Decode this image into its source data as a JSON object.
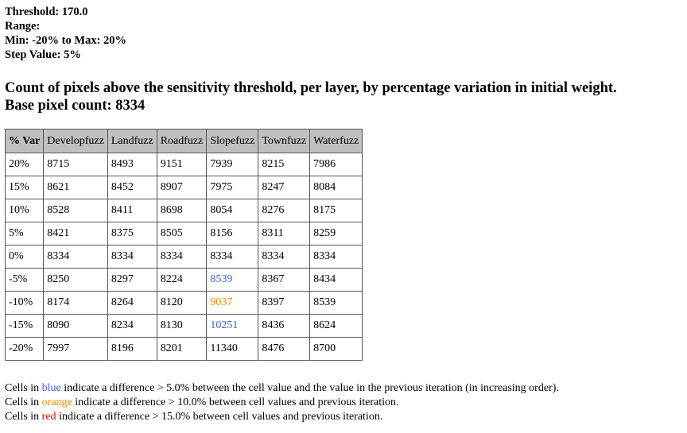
{
  "params": {
    "threshold": "Threshold: 170.0",
    "range": "Range:",
    "minmax": "Min: -20% to Max: 20%",
    "step": "Step Value: 5%"
  },
  "heading": {
    "line1": "Count of pixels above the sensitivity threshold, per layer, by percentage variation in initial weight.",
    "line2": "Base pixel count: 8334"
  },
  "table": {
    "headers": [
      "% Var",
      "Developfuzz",
      "Landfuzz",
      "Roadfuzz",
      "Slopefuzz",
      "Townfuzz",
      "Waterfuzz"
    ],
    "rows": [
      [
        "20%",
        "8715",
        "8493",
        "9151",
        "7939",
        "8215",
        "7986"
      ],
      [
        "15%",
        "8621",
        "8452",
        "8907",
        "7975",
        "8247",
        "8084"
      ],
      [
        "10%",
        "8528",
        "8411",
        "8698",
        "8054",
        "8276",
        "8175"
      ],
      [
        "5%",
        "8421",
        "8375",
        "8505",
        "8156",
        "8311",
        "8259"
      ],
      [
        "0%",
        "8334",
        "8334",
        "8334",
        "8334",
        "8334",
        "8334"
      ],
      [
        "-5%",
        "8250",
        "8297",
        "8224",
        "8539",
        "8367",
        "8434"
      ],
      [
        "-10%",
        "8174",
        "8264",
        "8120",
        "9037",
        "8397",
        "8539"
      ],
      [
        "-15%",
        "8090",
        "8234",
        "8130",
        "10251",
        "8436",
        "8624"
      ],
      [
        "-20%",
        "7997",
        "8196",
        "8201",
        "11340",
        "8476",
        "8700"
      ]
    ],
    "highlights": [
      {
        "row": 5,
        "col": 4,
        "level": "blue"
      },
      {
        "row": 6,
        "col": 4,
        "level": "orange"
      },
      {
        "row": 7,
        "col": 4,
        "level": "blue"
      }
    ]
  },
  "legend": {
    "blue": {
      "pre": "Cells in ",
      "word": "blue",
      "post": " indicate a difference > 5.0% between the cell value and the value in the previous iteration (in increasing order).",
      "color": "#3a5fd6"
    },
    "orange": {
      "pre": "Cells in ",
      "word": "orange",
      "post": " indicate a difference > 10.0% between cell values and previous iteration.",
      "color": "#f08a00"
    },
    "red": {
      "pre": "Cells in ",
      "word": "red",
      "post": " indicate a difference > 15.0% between cell values and previous iteration.",
      "color": "#e00000"
    }
  }
}
